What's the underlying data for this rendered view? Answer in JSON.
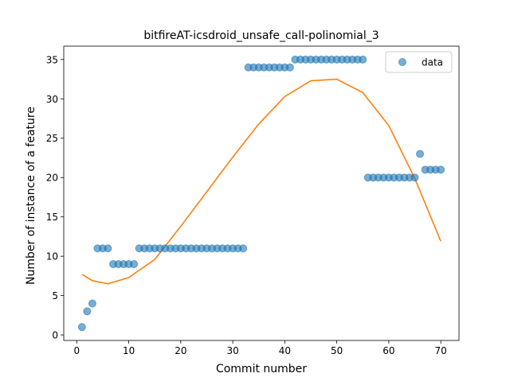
{
  "chart_data": {
    "type": "scatter",
    "title": "bitfireAT-icsdroid_unsafe_call-polinomial_3",
    "xlabel": "Commit number",
    "ylabel": "Number of instance of a feature",
    "xlim": [
      -2.5,
      73.5
    ],
    "ylim": [
      -0.7,
      36.7
    ],
    "xticks": [
      0,
      10,
      20,
      30,
      40,
      50,
      60,
      70
    ],
    "yticks": [
      0,
      5,
      10,
      15,
      20,
      25,
      30,
      35
    ],
    "grid": false,
    "legend": {
      "position": "top-right",
      "entries": [
        "data"
      ]
    },
    "series": [
      {
        "name": "data",
        "kind": "scatter",
        "color": "#1f77b4",
        "alpha": 0.6,
        "x": [
          1,
          2,
          3,
          4,
          5,
          6,
          7,
          8,
          9,
          10,
          11,
          12,
          13,
          14,
          15,
          16,
          17,
          18,
          19,
          20,
          21,
          22,
          23,
          24,
          25,
          26,
          27,
          28,
          29,
          30,
          31,
          32,
          33,
          34,
          35,
          36,
          37,
          38,
          39,
          40,
          41,
          42,
          43,
          44,
          45,
          46,
          47,
          48,
          49,
          50,
          51,
          52,
          53,
          54,
          55,
          56,
          57,
          58,
          59,
          60,
          61,
          62,
          63,
          64,
          65,
          66,
          67,
          68,
          69,
          70
        ],
        "y": [
          1,
          3,
          4,
          11,
          11,
          11,
          9,
          9,
          9,
          9,
          9,
          11,
          11,
          11,
          11,
          11,
          11,
          11,
          11,
          11,
          11,
          11,
          11,
          11,
          11,
          11,
          11,
          11,
          11,
          11,
          11,
          11,
          34,
          34,
          34,
          34,
          34,
          34,
          34,
          34,
          34,
          35,
          35,
          35,
          35,
          35,
          35,
          35,
          35,
          35,
          35,
          35,
          35,
          35,
          35,
          20,
          20,
          20,
          20,
          20,
          20,
          20,
          20,
          20,
          20,
          23,
          21,
          21,
          21,
          21
        ]
      },
      {
        "kind": "line",
        "color": "#ff7f0e",
        "polynomial_degree": 3,
        "x": [
          1,
          3,
          6,
          10,
          15,
          20,
          25,
          30,
          35,
          40,
          45,
          50,
          55,
          60,
          65,
          70
        ],
        "y": [
          7.7,
          6.9,
          6.5,
          7.3,
          9.6,
          13.8,
          18.2,
          22.6,
          26.8,
          30.3,
          32.3,
          32.5,
          30.8,
          26.6,
          19.9,
          11.9
        ]
      }
    ]
  }
}
